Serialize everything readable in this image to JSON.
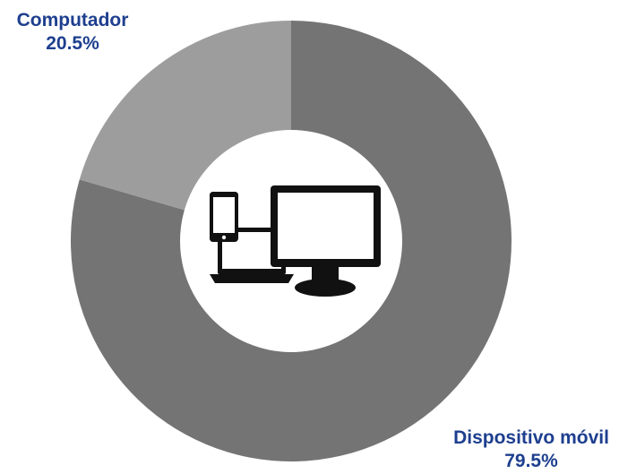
{
  "chart_data": {
    "type": "pie",
    "variant": "donut",
    "title": "",
    "slices": [
      {
        "label": "Dispositivo móvil",
        "value": 79.5,
        "value_label": "79.5%",
        "color": "#747474"
      },
      {
        "label": "Computador",
        "value": 20.5,
        "value_label": "20.5%",
        "color": "#9d9d9d"
      }
    ],
    "label_color": "#1e3f8f",
    "center_icon": "devices-icon"
  }
}
